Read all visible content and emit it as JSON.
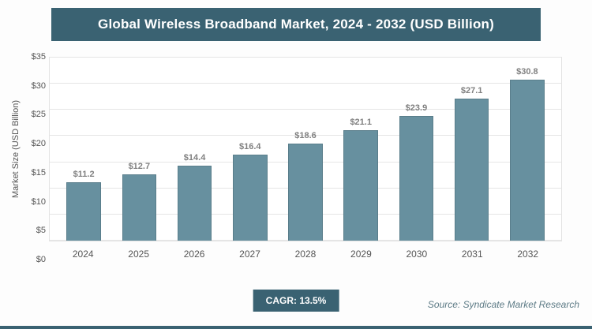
{
  "header": {
    "title": "Global Wireless Broadband Market, 2024 - 2032 (USD Billion)"
  },
  "chart_data": {
    "type": "bar",
    "title": "Global Wireless Broadband Market, 2024 - 2032 (USD Billion)",
    "categories": [
      "2024",
      "2025",
      "2026",
      "2027",
      "2028",
      "2029",
      "2030",
      "2031",
      "2032"
    ],
    "values": [
      11.2,
      12.7,
      14.4,
      16.4,
      18.6,
      21.1,
      23.9,
      27.1,
      30.8
    ],
    "value_label_prefix": "$",
    "xlabel": "",
    "ylabel": "Market Size (USD Billion)",
    "ylim": [
      0,
      35
    ],
    "ytick_step": 5,
    "ytick_prefix": "$",
    "grid": "horizontal",
    "legend": "none"
  },
  "footer": {
    "cagr_label": "CAGR: 13.5%",
    "source": "Source: Syndicate Market Research"
  },
  "theme": {
    "accent": "#3A6272",
    "bar_color": "#67909F",
    "value_label_color": "#808080"
  }
}
